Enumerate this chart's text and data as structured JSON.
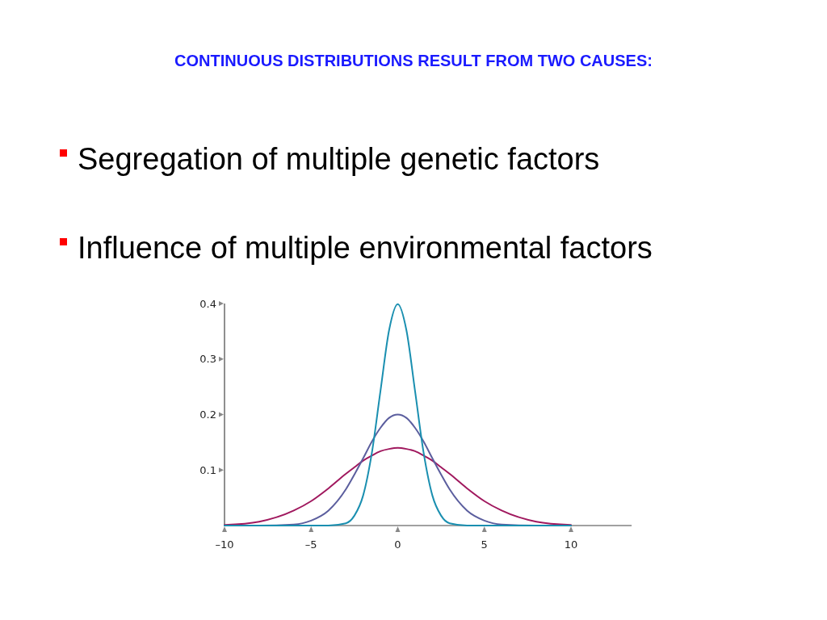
{
  "chart_data": {
    "type": "line",
    "title": "CONTINUOUS DISTRIBUTIONS RESULT FROM TWO CAUSES:",
    "annotations": [
      "Segregation of multiple genetic factors",
      "Influence of multiple environmental factors"
    ],
    "x": [
      -10,
      -8,
      -6,
      -5,
      -4,
      -3,
      -2.5,
      -2,
      -1.5,
      -1,
      -0.5,
      0,
      0.5,
      1,
      1.5,
      2,
      2.5,
      3,
      4,
      5,
      6,
      8,
      10
    ],
    "series": [
      {
        "color": "#a0185e",
        "values": [
          0.001,
          0.007,
          0.027,
          0.044,
          0.067,
          0.093,
          0.105,
          0.117,
          0.126,
          0.134,
          0.138,
          0.14,
          0.138,
          0.134,
          0.126,
          0.117,
          0.105,
          0.093,
          0.067,
          0.044,
          0.027,
          0.007,
          0.001
        ]
      },
      {
        "color": "#5b5e9e",
        "values": [
          0,
          0,
          0.002,
          0.009,
          0.027,
          0.065,
          0.092,
          0.121,
          0.151,
          0.176,
          0.194,
          0.2,
          0.194,
          0.176,
          0.151,
          0.121,
          0.092,
          0.065,
          0.027,
          0.009,
          0.002,
          0,
          0
        ]
      },
      {
        "color": "#1a8fb0",
        "values": [
          0,
          0,
          0,
          0,
          0,
          0.004,
          0.018,
          0.054,
          0.13,
          0.242,
          0.352,
          0.399,
          0.352,
          0.242,
          0.13,
          0.054,
          0.018,
          0.004,
          0,
          0,
          0,
          0,
          0
        ]
      }
    ],
    "xlim": [
      -10,
      13.5
    ],
    "ylim": [
      0,
      0.4
    ],
    "xticks": [
      {
        "value": -10,
        "label": "–10"
      },
      {
        "value": -5,
        "label": "–5"
      },
      0,
      5,
      10
    ],
    "yticks": [
      0.1,
      0.2,
      0.3,
      0.4
    ],
    "grid": false,
    "marker": "none",
    "line_style": "solid"
  }
}
